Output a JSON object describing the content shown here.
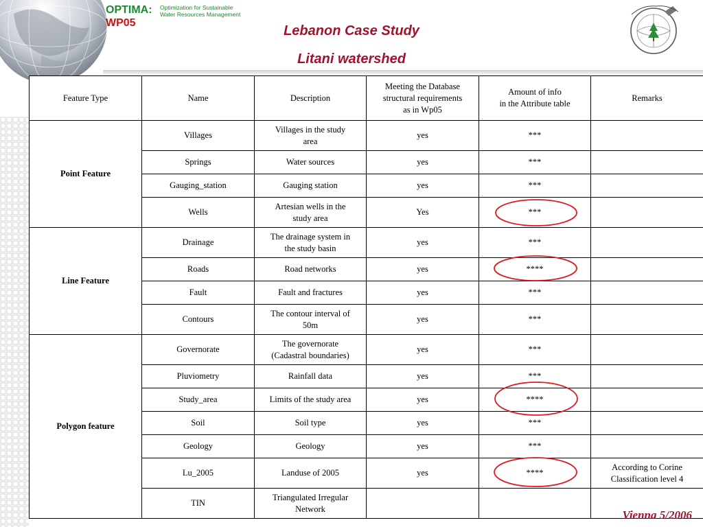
{
  "header": {
    "brand_name": "OPTIMA:",
    "brand_wp": "WP05",
    "brand_sub_1": "Optimization for Sustainable",
    "brand_sub_2": "Water Resources Management",
    "title_1": "Lebanon Case Study",
    "title_2": "Litani watershed",
    "logo_icon": "national-center-for-remote-sensing-seal-icon"
  },
  "table": {
    "headers": {
      "feature_type": "Feature Type",
      "name": "Name",
      "description": "Description",
      "meeting_1": "Meeting the Database",
      "meeting_2": "structural  requirements",
      "meeting_3": "as  in Wp05",
      "amount_1": "Amount of info",
      "amount_2": "in the Attribute table",
      "remarks": "Remarks"
    },
    "groups": {
      "point": "Point Feature",
      "line": "Line Feature",
      "polygon": "Polygon feature"
    },
    "rows": [
      {
        "name": "Villages",
        "desc_1": "Villages in the study",
        "desc_2": "area",
        "meets": "yes",
        "amount": "***",
        "remark_1": "",
        "remark_2": ""
      },
      {
        "name": "Springs",
        "desc_1": "Water sources",
        "desc_2": "",
        "meets": "yes",
        "amount": "***",
        "remark_1": "",
        "remark_2": ""
      },
      {
        "name": "Gauging_station",
        "desc_1": "Gauging station",
        "desc_2": "",
        "meets": "yes",
        "amount": "***",
        "remark_1": "",
        "remark_2": ""
      },
      {
        "name": "Wells",
        "desc_1": "Artesian wells in the",
        "desc_2": "study area",
        "meets": "Yes",
        "amount": "***",
        "remark_1": "",
        "remark_2": ""
      },
      {
        "name": "Drainage",
        "desc_1": "The drainage system in",
        "desc_2": "the study basin",
        "meets": "yes",
        "amount": "***",
        "remark_1": "",
        "remark_2": ""
      },
      {
        "name": "Roads",
        "desc_1": "Road networks",
        "desc_2": "",
        "meets": "yes",
        "amount": "****",
        "remark_1": "",
        "remark_2": ""
      },
      {
        "name": "Fault",
        "desc_1": "Fault and fractures",
        "desc_2": "",
        "meets": "yes",
        "amount": "***",
        "remark_1": "",
        "remark_2": ""
      },
      {
        "name": "Contours",
        "desc_1": "The contour interval of",
        "desc_2": "50m",
        "meets": "yes",
        "amount": "***",
        "remark_1": "",
        "remark_2": ""
      },
      {
        "name": "Governorate",
        "desc_1": "The governorate",
        "desc_2": "(Cadastral boundaries)",
        "meets": "yes",
        "amount": "***",
        "remark_1": "",
        "remark_2": ""
      },
      {
        "name": "Pluviometry",
        "desc_1": "Rainfall data",
        "desc_2": "",
        "meets": "yes",
        "amount": "***",
        "remark_1": "",
        "remark_2": ""
      },
      {
        "name": "Study_area",
        "desc_1": "Limits of the study area",
        "desc_2": "",
        "meets": "yes",
        "amount": "****",
        "remark_1": "",
        "remark_2": ""
      },
      {
        "name": "Soil",
        "desc_1": "Soil type",
        "desc_2": "",
        "meets": "yes",
        "amount": "***",
        "remark_1": "",
        "remark_2": ""
      },
      {
        "name": "Geology",
        "desc_1": "Geology",
        "desc_2": "",
        "meets": "yes",
        "amount": "***",
        "remark_1": "",
        "remark_2": ""
      },
      {
        "name": "Lu_2005",
        "desc_1": "Landuse of 2005",
        "desc_2": "",
        "meets": "yes",
        "amount": "****",
        "remark_1": "According to Corine",
        "remark_2": "Classification level 4"
      },
      {
        "name": "TIN",
        "desc_1": "Triangulated Irregular",
        "desc_2": "Network",
        "meets": "",
        "amount": "",
        "remark_1": "",
        "remark_2": ""
      }
    ]
  },
  "annotations": {
    "highlight_color": "#e0191f",
    "circled_rows": [
      "Wells",
      "Roads",
      "Study_area",
      "Lu_2005"
    ]
  },
  "footer": "Vienna 5/2006",
  "colors": {
    "title": "#a3122c",
    "brand_green": "#1b8a2e",
    "brand_red": "#cc1111"
  }
}
